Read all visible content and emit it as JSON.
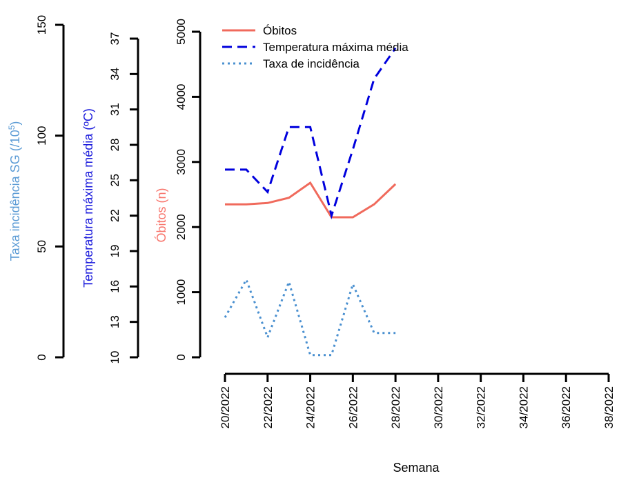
{
  "chart_data": {
    "type": "line",
    "xlabel": "Semana",
    "x_ticks": [
      "20/2022",
      "22/2022",
      "24/2022",
      "26/2022",
      "28/2022",
      "30/2022",
      "32/2022",
      "34/2022",
      "36/2022",
      "38/2022"
    ],
    "x": [
      "20/2022",
      "21/2022",
      "22/2022",
      "23/2022",
      "24/2022",
      "25/2022",
      "26/2022",
      "27/2022",
      "28/2022"
    ],
    "x_range": [
      20,
      38
    ],
    "axes": [
      {
        "id": "obitos",
        "label": "Óbitos (n)",
        "color": "#f8766d",
        "range": [
          0,
          5000
        ],
        "ticks": [
          "0",
          "1000",
          "2000",
          "3000",
          "4000",
          "5000"
        ]
      },
      {
        "id": "temp",
        "label": "Temperatura máxima média (ºC)",
        "color": "#1c1cdc",
        "range": [
          10,
          37
        ],
        "ticks": [
          "10",
          "13",
          "16",
          "19",
          "22",
          "25",
          "28",
          "31",
          "34",
          "37"
        ]
      },
      {
        "id": "taxa",
        "label_main": "Taxa incidência SG (/10",
        "label_sup": "5",
        "label_end": ")",
        "color": "#5b9bd5",
        "range": [
          0,
          150
        ],
        "ticks": [
          "0",
          "50",
          "100",
          "150"
        ]
      }
    ],
    "series": [
      {
        "name": "Óbitos",
        "axis": "obitos",
        "color": "#f06a5c",
        "dash": "solid",
        "values": [
          2350,
          2350,
          2370,
          2450,
          2680,
          2150,
          2150,
          2350,
          2660
        ]
      },
      {
        "name": "Temperatura máxima média",
        "axis": "temp",
        "color": "#0000dd",
        "dash": "dashed",
        "values": [
          25.9,
          25.9,
          24.0,
          29.5,
          29.5,
          22.0,
          27.6,
          33.6,
          36.2
        ]
      },
      {
        "name": "Taxa de incidência",
        "axis": "taxa",
        "color": "#4a90d0",
        "dash": "dotted",
        "values": [
          18,
          35,
          9,
          34,
          1,
          1,
          33,
          11,
          11
        ]
      }
    ],
    "legend_position": "top-left"
  }
}
